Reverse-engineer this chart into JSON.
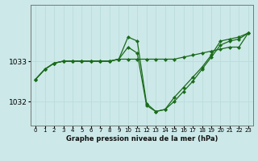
{
  "xlabel": "Graphe pression niveau de la mer (hPa)",
  "bg_color": "#cce8e8",
  "grid_color": "#bbdddd",
  "line_color": "#1a6b1a",
  "ylim": [
    1031.4,
    1034.4
  ],
  "yticks": [
    1032,
    1033
  ],
  "ytick_labels": [
    "1032",
    "1033"
  ],
  "series": [
    [
      1032.55,
      1032.8,
      1032.95,
      1033.0,
      1033.0,
      1033.0,
      1033.0,
      1033.0,
      1033.0,
      1033.05,
      1033.05,
      1033.05,
      1033.05,
      1033.05,
      1033.05,
      1033.05,
      1033.1,
      1033.15,
      1033.2,
      1033.25,
      1033.3,
      1033.35,
      1033.35,
      1033.7
    ],
    [
      1032.55,
      1032.8,
      1032.95,
      1033.0,
      1033.0,
      1033.0,
      1033.0,
      1033.0,
      1033.0,
      1033.05,
      1033.35,
      1033.2,
      1031.9,
      1031.75,
      1031.8,
      1032.0,
      1032.25,
      1032.5,
      1032.8,
      1033.1,
      1033.4,
      1033.5,
      1033.55,
      1033.7
    ],
    [
      1032.55,
      1032.8,
      1032.95,
      1033.0,
      1033.0,
      1033.0,
      1033.0,
      1033.0,
      1033.0,
      1033.05,
      1033.6,
      1033.5,
      1031.95,
      1031.75,
      1031.8,
      1032.1,
      1032.35,
      1032.6,
      1032.85,
      1033.15,
      1033.5,
      1033.55,
      1033.6,
      1033.7
    ]
  ]
}
